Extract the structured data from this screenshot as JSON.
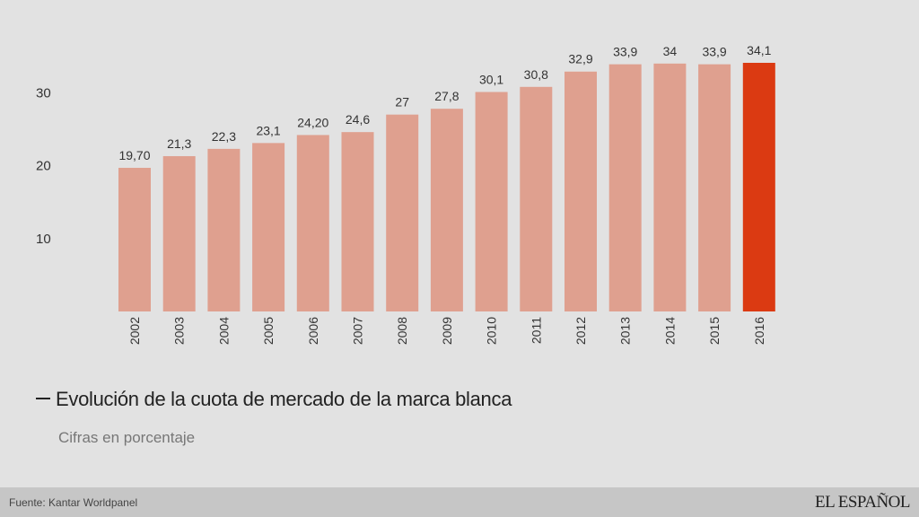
{
  "chart_data": {
    "type": "bar",
    "title": "Evolución de la cuota de mercado de la marca blanca",
    "subtitle": "Cifras en porcentaje",
    "categories": [
      "2002",
      "2003",
      "2004",
      "2005",
      "2006",
      "2007",
      "2008",
      "2009",
      "2010",
      "2011",
      "2012",
      "2013",
      "2014",
      "2015",
      "2016"
    ],
    "values": [
      19.7,
      21.3,
      22.3,
      23.1,
      24.2,
      24.6,
      27,
      27.8,
      30.1,
      30.8,
      32.9,
      33.9,
      34,
      33.9,
      34.1
    ],
    "value_labels": [
      "19,70",
      "21,3",
      "22,3",
      "23,1",
      "24,20",
      "24,6",
      "27",
      "27,8",
      "30,1",
      "30,8",
      "32,9",
      "33,9",
      "34",
      "33,9",
      "34,1"
    ],
    "highlight_index": 14,
    "yticks": [
      10,
      20,
      30
    ],
    "ylim": [
      0,
      34.1
    ],
    "xlabel": "",
    "ylabel": "",
    "grid": false,
    "colors": {
      "bar": "#dfa08f",
      "highlight": "#db3a12"
    }
  },
  "footer": {
    "source": "Fuente: Kantar Worldpanel",
    "brand": "EL ESPAÑOL"
  }
}
